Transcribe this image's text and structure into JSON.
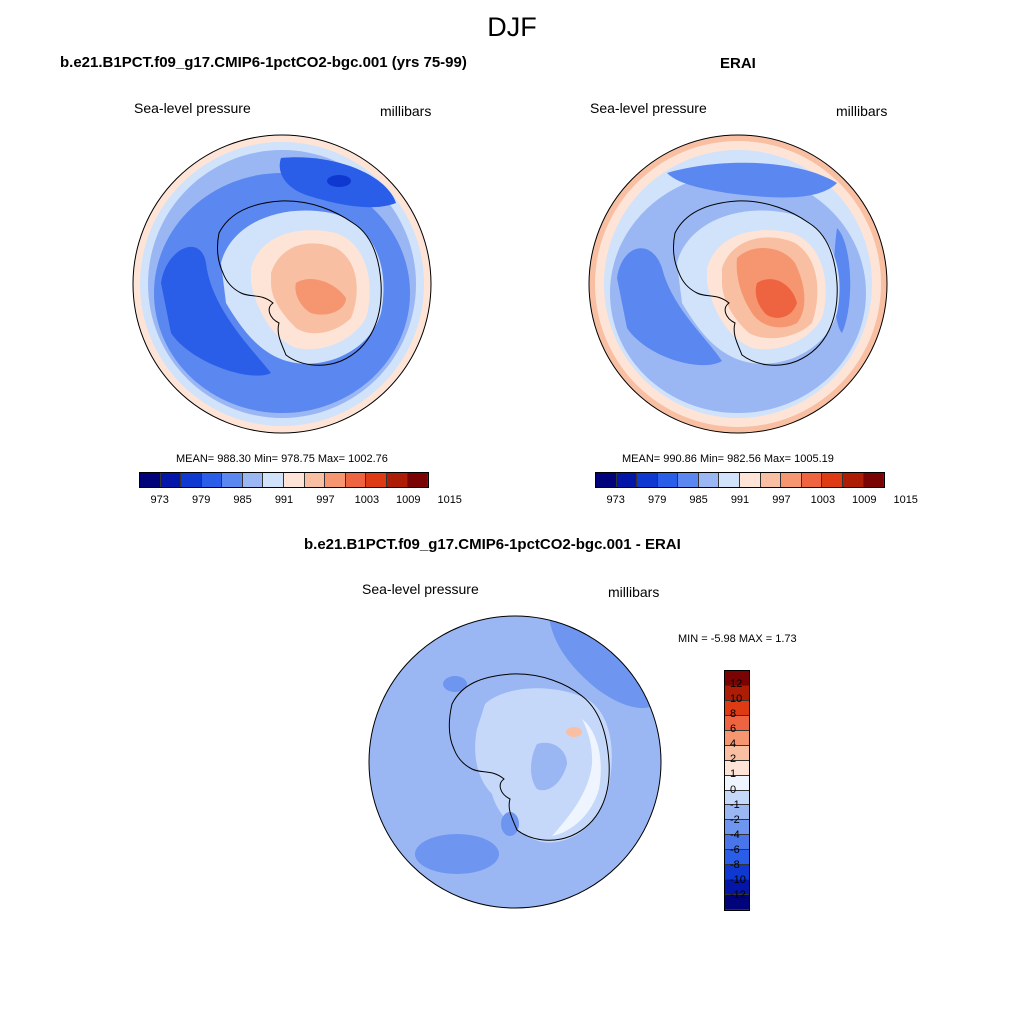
{
  "page_title": "DJF",
  "colors": {
    "model_scale": [
      "#00037a",
      "#0316a8",
      "#0f38d0",
      "#2a5ee8",
      "#5a87f0",
      "#9ab7f4",
      "#d1e2fb",
      "#fde4d6",
      "#f9bfa2",
      "#f59670",
      "#ef6440",
      "#de3a13",
      "#ad1c05",
      "#7a0403"
    ],
    "diff_scale": [
      "#7a0403",
      "#ad1c05",
      "#de3a13",
      "#ef6440",
      "#f59670",
      "#f9bfa2",
      "#fde4d6",
      "#eef5ff",
      "#c6d8fa",
      "#9ab7f4",
      "#6e95f0",
      "#4a74ea",
      "#2a5ee8",
      "#0f38d0",
      "#0316a8",
      "#00037a"
    ]
  },
  "panels": [
    {
      "title": "b.e21.B1PCT.f09_g17.CMIP6-1pctCO2-bgc.001 (yrs 75-99)",
      "left_label": "Sea-level pressure",
      "right_label": "millibars",
      "stats": "MEAN= 988.30  Min= 978.75  Max= 1002.76",
      "colorbar_ticks": [
        "973",
        "979",
        "985",
        "991",
        "997",
        "1003",
        "1009",
        "1015"
      ]
    },
    {
      "title": "ERAI",
      "left_label": "Sea-level pressure",
      "right_label": "millibars",
      "stats": "MEAN= 990.86  Min= 982.56  Max= 1005.19",
      "colorbar_ticks": [
        "973",
        "979",
        "985",
        "991",
        "997",
        "1003",
        "1009",
        "1015"
      ]
    },
    {
      "title": "b.e21.B1PCT.f09_g17.CMIP6-1pctCO2-bgc.001 - ERAI",
      "left_label": "Sea-level pressure",
      "right_label": "millibars",
      "stats": "MIN =  -5.98 MAX =   1.73",
      "colorbar_ticks": [
        "12",
        "10",
        "8",
        "6",
        "4",
        "2",
        "1",
        "0",
        "-1",
        "-2",
        "-4",
        "-6",
        "-8",
        "-10",
        "-12"
      ]
    }
  ]
}
